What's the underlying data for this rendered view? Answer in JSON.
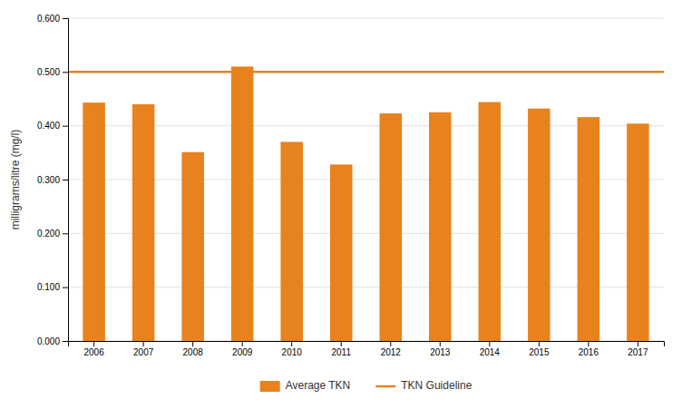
{
  "chart_data": {
    "type": "bar",
    "ylabel": "milligrams/litre (mg/l)",
    "categories": [
      "2006",
      "2007",
      "2008",
      "2009",
      "2010",
      "2011",
      "2012",
      "2013",
      "2014",
      "2015",
      "2016",
      "2017"
    ],
    "series": [
      {
        "name": "Average TKN",
        "color": "#E8821E",
        "values": [
          0.443,
          0.44,
          0.351,
          0.51,
          0.37,
          0.328,
          0.423,
          0.425,
          0.444,
          0.432,
          0.416,
          0.404
        ]
      }
    ],
    "guideline": {
      "name": "TKN Guideline",
      "value": 0.5,
      "color": "#E8821E"
    },
    "ylim": [
      0.0,
      0.6
    ],
    "yticks": [
      {
        "value": 0.0,
        "label": "0.000"
      },
      {
        "value": 0.1,
        "label": "0.100"
      },
      {
        "value": 0.2,
        "label": "0.200"
      },
      {
        "value": 0.3,
        "label": "0.300"
      },
      {
        "value": 0.4,
        "label": "0.400"
      },
      {
        "value": 0.5,
        "label": "0.500"
      },
      {
        "value": 0.6,
        "label": "0.600"
      }
    ],
    "grid": true,
    "legend": "bottom"
  }
}
